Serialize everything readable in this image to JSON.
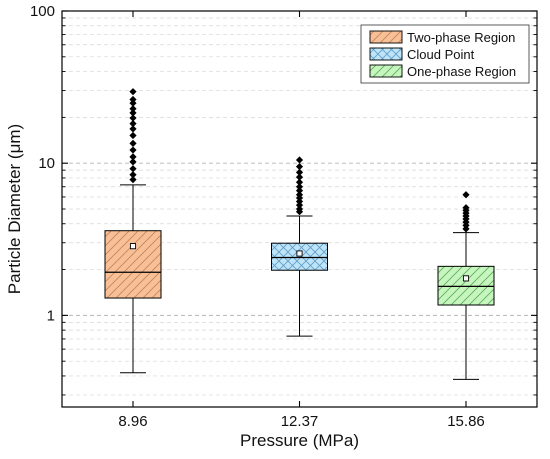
{
  "chart_data": {
    "type": "box",
    "xlabel": "Pressure (MPa)",
    "ylabel": "Particle Diameter (μm)",
    "yscale": "log",
    "ylim": [
      0.25,
      100
    ],
    "y_ticks": [
      1,
      10,
      100
    ],
    "y_tick_labels": [
      "1",
      "10",
      "100"
    ],
    "grid": "horizontal dashed (major and minor)",
    "legend_position": "top-right",
    "categories": [
      "8.96",
      "12.37",
      "15.86"
    ],
    "series": [
      {
        "name": "Two-phase Region",
        "category": "8.96",
        "color": "#f7c097",
        "edge_color": "#d28a55",
        "hatch": "diagonal",
        "whisker_low": 0.42,
        "q1": 1.3,
        "median": 1.92,
        "q3": 3.6,
        "whisker_high": 7.2,
        "mean": 2.85,
        "outliers": [
          7.8,
          8.4,
          9.2,
          10.2,
          11.0,
          12.2,
          13.5,
          15.2,
          16.8,
          18.2,
          19.8,
          21.4,
          22.8,
          24.8,
          26.2,
          29.5
        ]
      },
      {
        "name": "Cloud Point",
        "category": "12.37",
        "color": "#bfe3f7",
        "edge_color": "#5c9ec9",
        "hatch": "cross",
        "whisker_low": 0.73,
        "q1": 1.98,
        "median": 2.4,
        "q3": 2.98,
        "whisker_high": 4.5,
        "mean": 2.55,
        "outliers": [
          4.8,
          5.0,
          5.3,
          5.6,
          5.9,
          6.2,
          6.6,
          7.0,
          7.5,
          8.1,
          8.7,
          9.5,
          10.5
        ]
      },
      {
        "name": "One-phase Region",
        "category": "15.86",
        "color": "#c7f5c0",
        "edge_color": "#6cc262",
        "hatch": "diagonal",
        "whisker_low": 0.38,
        "q1": 1.17,
        "median": 1.55,
        "q3": 2.1,
        "whisker_high": 3.5,
        "mean": 1.75,
        "outliers": [
          3.7,
          3.9,
          4.1,
          4.3,
          4.5,
          4.7,
          4.9,
          5.1,
          6.2
        ]
      }
    ]
  }
}
